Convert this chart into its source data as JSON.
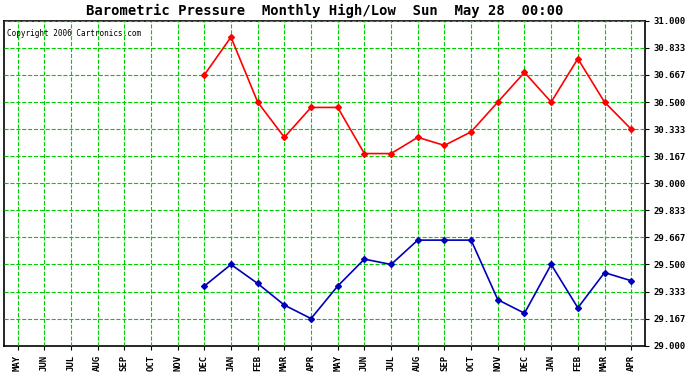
{
  "title": "Barometric Pressure  Monthly High/Low  Sun  May 28  00:00",
  "copyright": "Copyright 2006 Cartronics.com",
  "x_labels": [
    "MAY",
    "JUN",
    "JUL",
    "AUG",
    "SEP",
    "OCT",
    "NOV",
    "DEC",
    "JAN",
    "FEB",
    "MAR",
    "APR",
    "MAY",
    "JUN",
    "JUL",
    "AUG",
    "SEP",
    "OCT",
    "NOV",
    "DEC",
    "JAN",
    "FEB",
    "MAR",
    "APR"
  ],
  "high_values": [
    null,
    null,
    null,
    null,
    null,
    null,
    null,
    30.667,
    30.9,
    30.5,
    30.283,
    30.467,
    30.467,
    30.183,
    30.183,
    30.283,
    30.233,
    30.317,
    30.5,
    30.683,
    30.5,
    30.767,
    30.5,
    30.333
  ],
  "low_values": [
    null,
    null,
    null,
    null,
    null,
    null,
    null,
    29.367,
    29.5,
    29.383,
    29.25,
    29.167,
    29.367,
    29.533,
    29.5,
    29.65,
    29.65,
    29.65,
    29.283,
    29.2,
    29.5,
    29.233,
    29.45,
    29.4
  ],
  "high_color": "#ff0000",
  "low_color": "#0000bb",
  "background_color": "#ffffff",
  "plot_bg_color": "#ffffff",
  "grid_color": "#00cc00",
  "border_color": "#000000",
  "title_color": "#000000",
  "copyright_color": "#000000",
  "ylim": [
    29.0,
    31.0
  ],
  "ytick_values": [
    29.0,
    29.167,
    29.333,
    29.5,
    29.667,
    29.833,
    30.0,
    30.167,
    30.333,
    30.5,
    30.667,
    30.833,
    31.0
  ],
  "marker": "D",
  "marker_size": 3,
  "linewidth": 1.2,
  "title_fontsize": 10,
  "tick_fontsize": 6.5
}
